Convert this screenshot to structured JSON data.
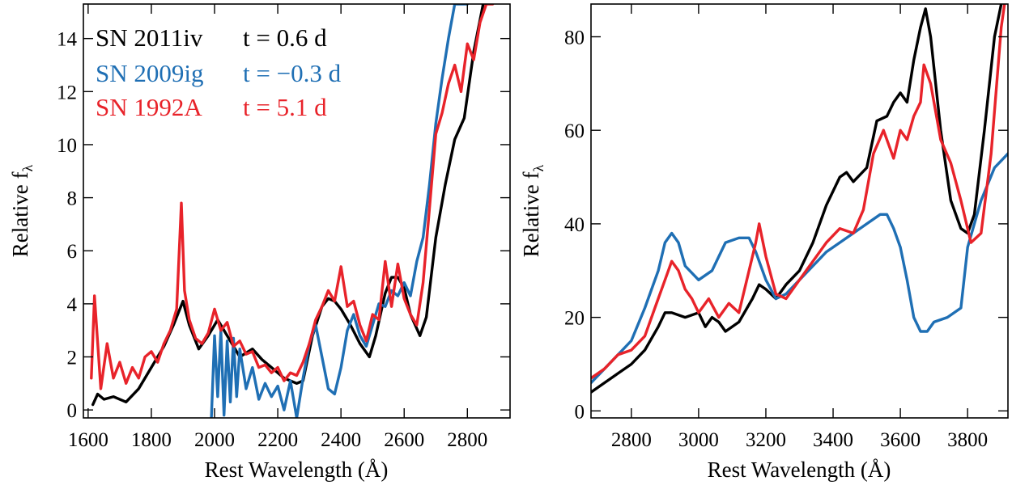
{
  "colors": {
    "sn2011iv": "#000000",
    "sn2009ig": "#1f6fb4",
    "sn1992a": "#e8232a"
  },
  "legend": [
    {
      "name": "SN 2011iv",
      "phase": "t = 0.6 d",
      "color": "#000000"
    },
    {
      "name": "SN 2009ig",
      "phase": "t = −0.3 d",
      "color": "#1f6fb4"
    },
    {
      "name": "SN 1992A",
      "phase": "t = 5.1 d",
      "color": "#e8232a"
    }
  ],
  "chart_data": [
    {
      "type": "line",
      "xlabel": "Rest Wavelength (Å)",
      "ylabel": "Relative f",
      "ylabel_subscript": "λ",
      "xlim": [
        1585,
        2935
      ],
      "ylim": [
        -0.3,
        15.3
      ],
      "xticks": [
        1600,
        1800,
        2000,
        2200,
        2400,
        2600,
        2800
      ],
      "yticks": [
        0,
        2,
        4,
        6,
        8,
        10,
        12,
        14
      ],
      "legend_position": "top-left",
      "series": [
        {
          "name": "SN 2011iv",
          "color": "#000000",
          "x": [
            1615,
            1630,
            1650,
            1680,
            1720,
            1760,
            1800,
            1840,
            1870,
            1900,
            1920,
            1950,
            1980,
            2010,
            2040,
            2080,
            2120,
            2150,
            2180,
            2220,
            2260,
            2280,
            2310,
            2340,
            2360,
            2380,
            2400,
            2430,
            2460,
            2490,
            2510,
            2540,
            2560,
            2580,
            2600,
            2620,
            2650,
            2670,
            2700,
            2730,
            2760,
            2790,
            2820,
            2850
          ],
          "values": [
            0.2,
            0.6,
            0.4,
            0.5,
            0.3,
            0.8,
            1.6,
            2.4,
            3.2,
            4.1,
            3.2,
            2.3,
            2.8,
            3.4,
            2.8,
            2.0,
            2.3,
            1.9,
            1.6,
            1.2,
            1.0,
            1.1,
            2.8,
            3.9,
            4.2,
            4.1,
            3.8,
            3.2,
            2.5,
            2.0,
            2.8,
            4.4,
            5.0,
            5.0,
            4.6,
            3.6,
            2.8,
            3.5,
            6.5,
            8.5,
            10.2,
            11.0,
            13.5,
            15.3
          ]
        },
        {
          "name": "SN 2009ig",
          "color": "#1f6fb4",
          "x": [
            1990,
            2000,
            2010,
            2020,
            2030,
            2040,
            2050,
            2060,
            2070,
            2080,
            2100,
            2120,
            2140,
            2160,
            2180,
            2200,
            2220,
            2240,
            2260,
            2280,
            2300,
            2320,
            2340,
            2360,
            2380,
            2400,
            2420,
            2440,
            2460,
            2480,
            2500,
            2520,
            2540,
            2560,
            2580,
            2600,
            2620,
            2640,
            2660,
            2680,
            2700,
            2720,
            2740,
            2760,
            2780,
            2800
          ],
          "values": [
            -0.3,
            2.8,
            0.5,
            3.0,
            -0.2,
            2.6,
            0.3,
            2.7,
            0.5,
            2.3,
            0.8,
            1.6,
            0.4,
            1.0,
            0.5,
            0.9,
            0.0,
            1.1,
            -0.3,
            1.2,
            2.5,
            3.2,
            2.0,
            0.8,
            0.6,
            1.6,
            3.0,
            3.6,
            2.8,
            2.4,
            3.2,
            4.0,
            3.9,
            4.5,
            4.3,
            4.8,
            4.3,
            5.6,
            6.5,
            8.5,
            10.8,
            12.5,
            14.0,
            15.3,
            15.3,
            15.3
          ]
        },
        {
          "name": "SN 1992A",
          "color": "#e8232a",
          "x": [
            1610,
            1620,
            1640,
            1660,
            1680,
            1700,
            1720,
            1740,
            1760,
            1780,
            1800,
            1820,
            1840,
            1860,
            1880,
            1895,
            1905,
            1920,
            1940,
            1960,
            1980,
            2000,
            2020,
            2040,
            2060,
            2080,
            2100,
            2120,
            2140,
            2160,
            2180,
            2200,
            2220,
            2240,
            2260,
            2280,
            2300,
            2320,
            2340,
            2360,
            2380,
            2400,
            2420,
            2440,
            2460,
            2480,
            2500,
            2520,
            2540,
            2560,
            2580,
            2600,
            2620,
            2640,
            2660,
            2680,
            2700,
            2720,
            2740,
            2760,
            2780,
            2800,
            2820,
            2840,
            2860,
            2880
          ],
          "values": [
            1.2,
            4.3,
            0.8,
            2.5,
            1.2,
            1.8,
            1.0,
            1.6,
            1.2,
            2.0,
            2.2,
            1.8,
            2.5,
            3.0,
            3.8,
            7.8,
            4.5,
            3.4,
            2.7,
            2.5,
            2.9,
            3.8,
            3.0,
            3.3,
            2.4,
            2.6,
            2.1,
            2.2,
            1.6,
            1.7,
            1.4,
            1.6,
            1.1,
            1.4,
            1.3,
            1.8,
            2.5,
            3.4,
            3.9,
            4.5,
            4.1,
            5.4,
            3.9,
            4.1,
            3.2,
            2.6,
            3.6,
            3.4,
            5.6,
            3.9,
            5.5,
            4.2,
            3.6,
            3.2,
            4.8,
            7.6,
            10.4,
            11.2,
            12.3,
            13.0,
            12.0,
            13.8,
            13.2,
            14.6,
            15.3,
            15.3
          ]
        }
      ]
    },
    {
      "type": "line",
      "xlabel": "Rest Wavelength (Å)",
      "ylabel": "Relative f",
      "ylabel_subscript": "λ",
      "xlim": [
        2680,
        3920
      ],
      "ylim": [
        -1.5,
        87
      ],
      "xticks": [
        2800,
        3000,
        3200,
        3400,
        3600,
        3800
      ],
      "yticks": [
        0,
        20,
        40,
        60,
        80
      ],
      "series": [
        {
          "name": "SN 2011iv",
          "color": "#000000",
          "x": [
            2680,
            2720,
            2760,
            2800,
            2840,
            2880,
            2900,
            2920,
            2960,
            3000,
            3020,
            3040,
            3060,
            3080,
            3120,
            3160,
            3180,
            3200,
            3230,
            3260,
            3300,
            3340,
            3380,
            3420,
            3440,
            3460,
            3500,
            3530,
            3560,
            3580,
            3600,
            3620,
            3640,
            3660,
            3675,
            3690,
            3720,
            3750,
            3780,
            3800,
            3820,
            3850,
            3880,
            3900
          ],
          "values": [
            4,
            6,
            8,
            10,
            13,
            18,
            21,
            21,
            20,
            21,
            18,
            20,
            19,
            17,
            19,
            24,
            27,
            26,
            24,
            27,
            30,
            36,
            44,
            50,
            51,
            49,
            52,
            62,
            63,
            66,
            68,
            66,
            75,
            82,
            86,
            80,
            60,
            45,
            39,
            38,
            42,
            60,
            80,
            87
          ]
        },
        {
          "name": "SN 2009ig",
          "color": "#1f6fb4",
          "x": [
            2680,
            2720,
            2760,
            2800,
            2840,
            2880,
            2900,
            2920,
            2940,
            2960,
            3000,
            3040,
            3080,
            3120,
            3150,
            3170,
            3200,
            3230,
            3260,
            3300,
            3340,
            3380,
            3420,
            3460,
            3500,
            3540,
            3560,
            3580,
            3600,
            3620,
            3640,
            3660,
            3680,
            3700,
            3740,
            3780,
            3800,
            3840,
            3880,
            3920
          ],
          "values": [
            6,
            9,
            12,
            15,
            22,
            30,
            36,
            38,
            36,
            31,
            28,
            30,
            36,
            37,
            37,
            34,
            28,
            24,
            25,
            28,
            31,
            34,
            36,
            38,
            40,
            42,
            42,
            39,
            35,
            28,
            20,
            17,
            17,
            19,
            20,
            22,
            35,
            45,
            52,
            55
          ]
        },
        {
          "name": "SN 1992A",
          "color": "#e8232a",
          "x": [
            2680,
            2720,
            2760,
            2800,
            2840,
            2870,
            2900,
            2920,
            2940,
            2960,
            2980,
            3000,
            3030,
            3060,
            3090,
            3120,
            3150,
            3170,
            3180,
            3200,
            3230,
            3260,
            3300,
            3340,
            3380,
            3420,
            3460,
            3490,
            3520,
            3550,
            3580,
            3600,
            3620,
            3640,
            3660,
            3670,
            3690,
            3720,
            3750,
            3780,
            3810,
            3840,
            3870,
            3900,
            3910
          ],
          "values": [
            7,
            9,
            12,
            13,
            16,
            22,
            28,
            32,
            30,
            26,
            24,
            21,
            24,
            20,
            23,
            21,
            30,
            36,
            40,
            33,
            25,
            24,
            28,
            32,
            36,
            39,
            38,
            43,
            55,
            60,
            54,
            60,
            58,
            63,
            66,
            74,
            70,
            58,
            53,
            45,
            36,
            38,
            55,
            82,
            87
          ]
        }
      ]
    }
  ]
}
